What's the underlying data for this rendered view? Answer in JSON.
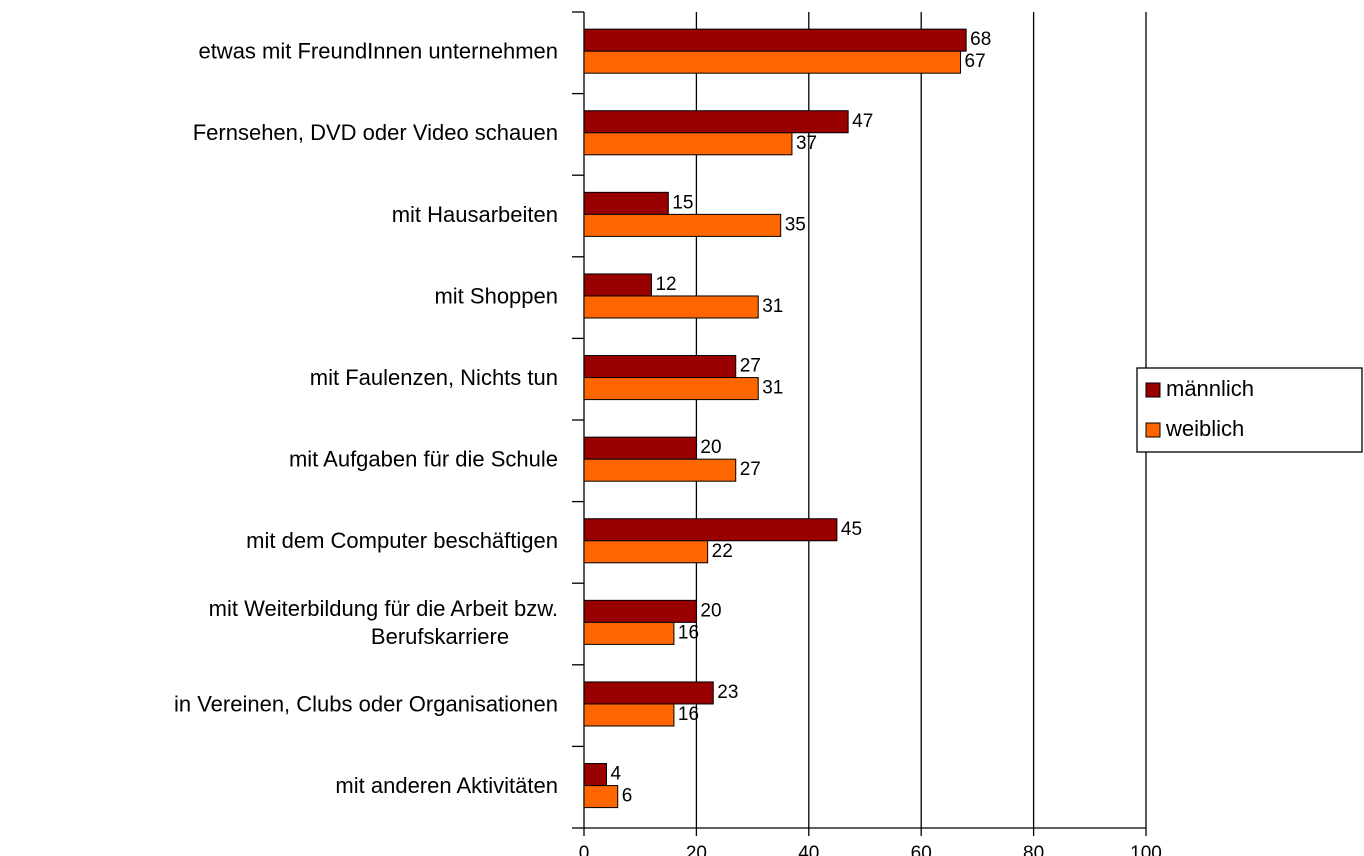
{
  "chart_data": {
    "type": "hbar",
    "categories": [
      "etwas mit FreundInnen unternehmen",
      "Fernsehen, DVD oder Video schauen",
      "mit Hausarbeiten",
      "mit Shoppen",
      "mit Faulenzen, Nichts tun",
      "mit Aufgaben für die Schule",
      "mit dem Computer beschäftigen",
      "mit Weiterbildung für die Arbeit bzw.\nBerufskarriere",
      "in Vereinen, Clubs oder Organisationen",
      "mit anderen Aktivitäten"
    ],
    "series": [
      {
        "name": "männlich",
        "color": "#990000",
        "values": [
          68,
          47,
          15,
          12,
          27,
          20,
          45,
          20,
          23,
          4
        ]
      },
      {
        "name": "weiblich",
        "color": "#ff6600",
        "values": [
          67,
          37,
          35,
          31,
          31,
          27,
          22,
          16,
          16,
          6
        ]
      }
    ],
    "xlim": [
      0,
      100
    ],
    "xticks": [
      0,
      20,
      40,
      60,
      80,
      100
    ],
    "grid": true,
    "legend": "right"
  }
}
